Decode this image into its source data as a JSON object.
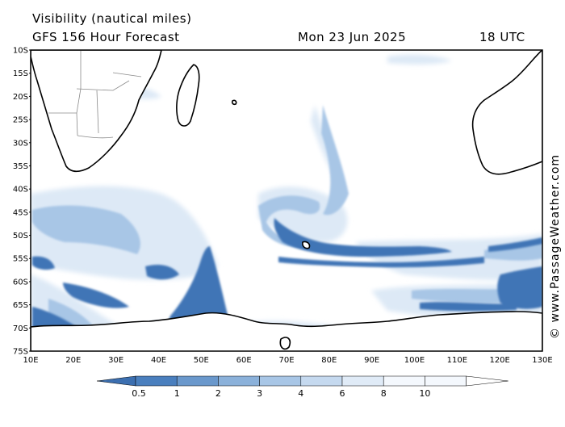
{
  "header": {
    "title": "Visibility (nautical miles)",
    "subtitle": "GFS 156 Hour Forecast",
    "date": "Mon 23 Jun 2025",
    "time": "18 UTC"
  },
  "credit": "© www.PassageWeather.com",
  "axes": {
    "lat_labels": [
      "10S",
      "15S",
      "20S",
      "25S",
      "30S",
      "35S",
      "40S",
      "45S",
      "50S",
      "55S",
      "60S",
      "65S",
      "70S",
      "75S"
    ],
    "lon_labels": [
      "10E",
      "20E",
      "30E",
      "40E",
      "50E",
      "60E",
      "70E",
      "80E",
      "90E",
      "100E",
      "110E",
      "120E",
      "130E"
    ]
  },
  "legend": {
    "labels": [
      "0.5",
      "1",
      "2",
      "3",
      "4",
      "6",
      "8",
      "10"
    ],
    "colors": [
      "#3c6fb0",
      "#4a7fbe",
      "#6a98cc",
      "#8bb1da",
      "#a8c6e6",
      "#c5d9ef",
      "#e0ebf7",
      "#f4f8fd"
    ]
  },
  "colors": {
    "land_line": "#000000",
    "border_line": "#8a8a8a",
    "dense_fog": "#3f74b6",
    "light_haze": "#dde9f6"
  }
}
